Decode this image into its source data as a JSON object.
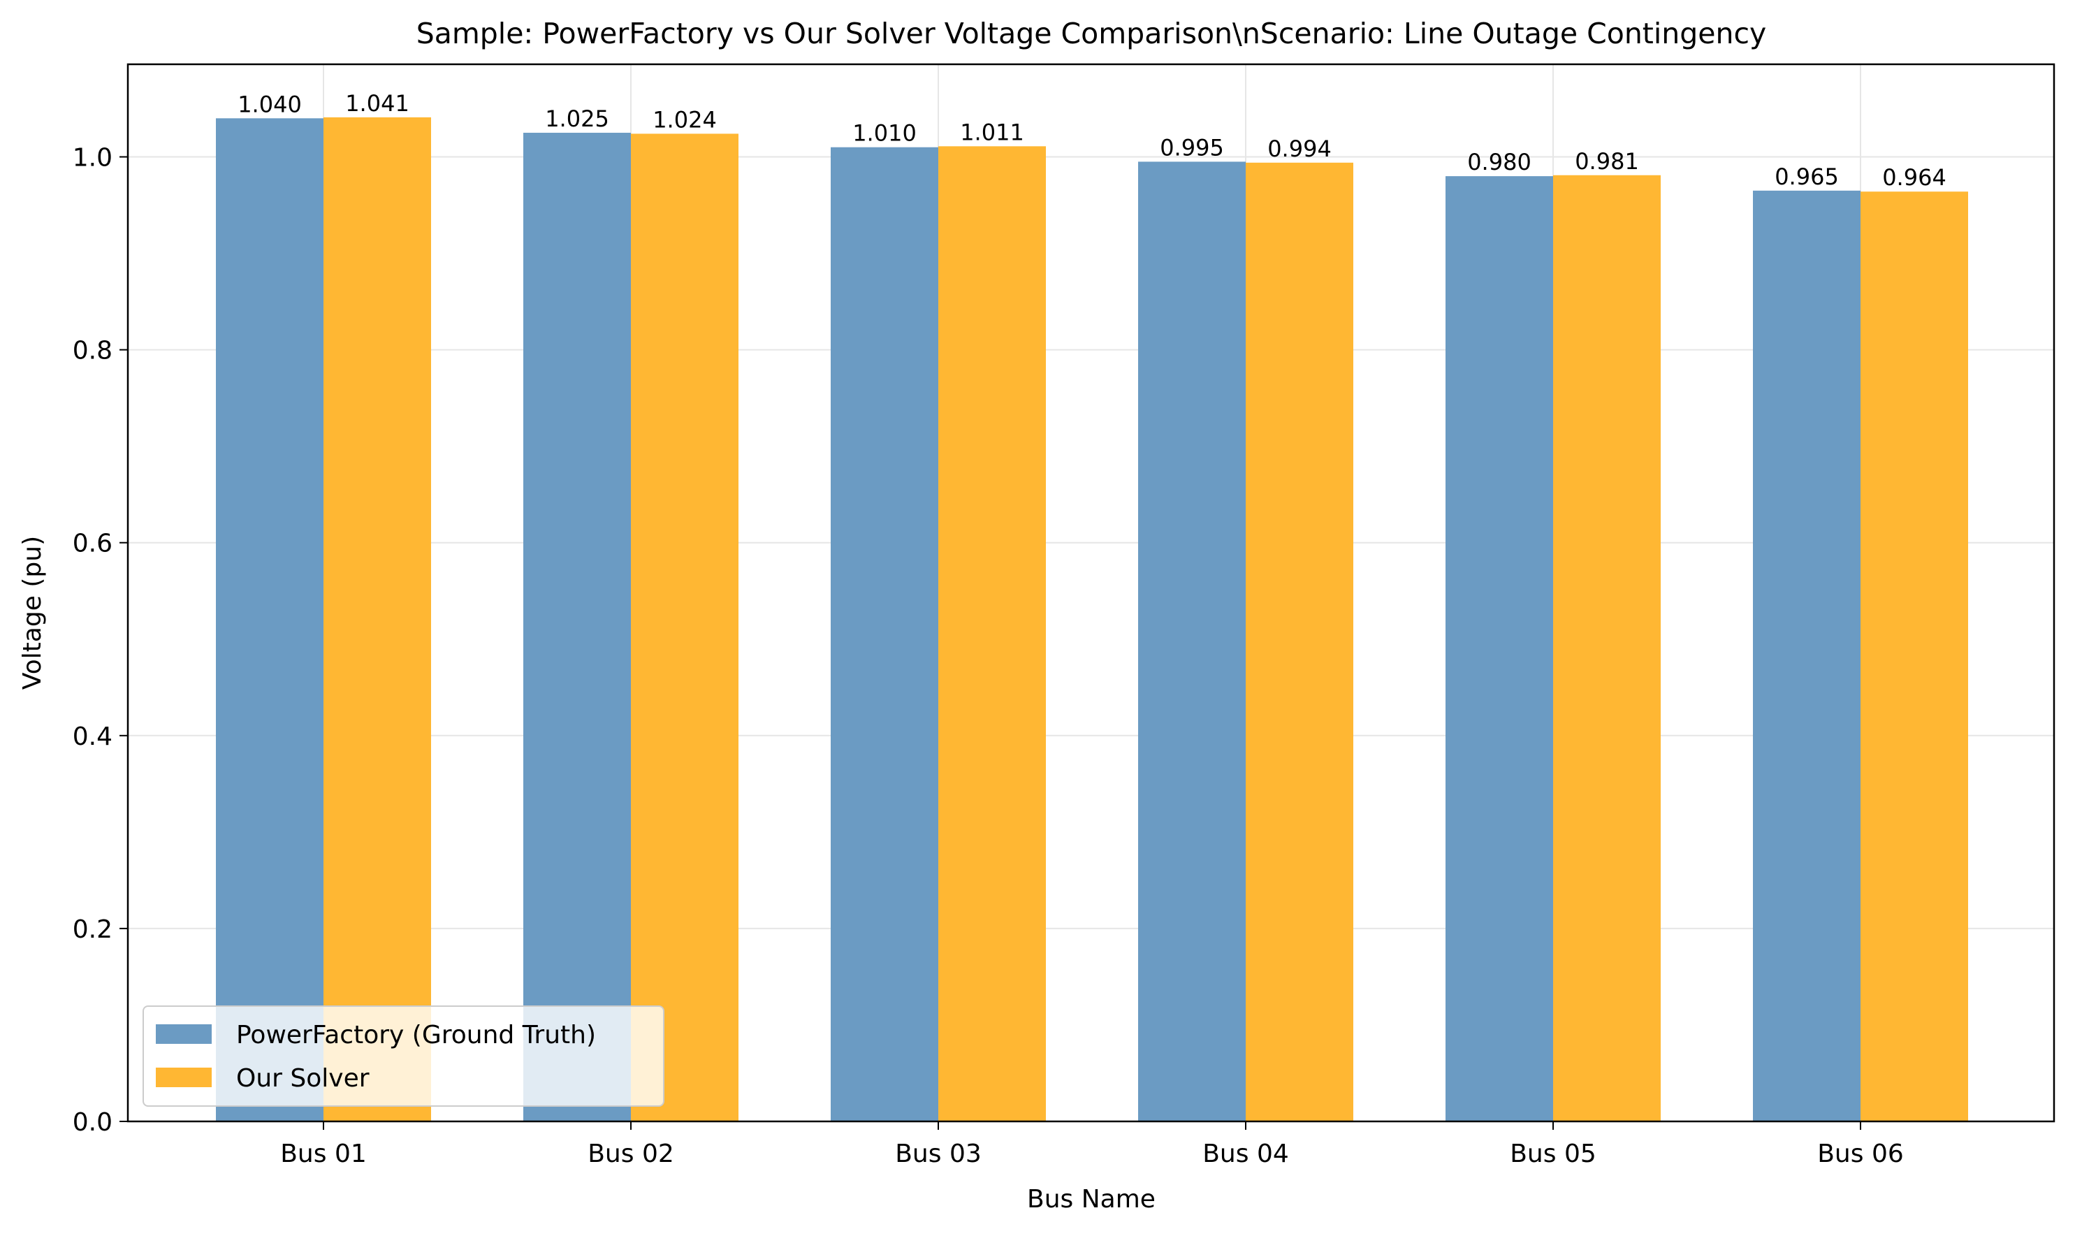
{
  "chart_data": {
    "type": "bar",
    "title": "Sample: PowerFactory vs Our Solver Voltage Comparison\\nScenario: Line Outage Contingency",
    "xlabel": "Bus Name",
    "ylabel": "Voltage (pu)",
    "categories": [
      "Bus 01",
      "Bus 02",
      "Bus 03",
      "Bus 04",
      "Bus 05",
      "Bus 06"
    ],
    "series": [
      {
        "name": "PowerFactory (Ground Truth)",
        "color": "#6b9bc3",
        "values": [
          1.04,
          1.025,
          1.01,
          0.995,
          0.98,
          0.965
        ],
        "labels": [
          "1.040",
          "1.025",
          "1.010",
          "0.995",
          "0.980",
          "0.965"
        ]
      },
      {
        "name": "Our Solver",
        "color": "#ffb733",
        "values": [
          1.041,
          1.024,
          1.011,
          0.994,
          0.981,
          0.964
        ],
        "labels": [
          "1.041",
          "1.024",
          "1.011",
          "0.994",
          "0.981",
          "0.964"
        ]
      }
    ],
    "ylim": [
      0,
      1.096
    ],
    "yticks": [
      "0.0",
      "0.2",
      "0.4",
      "0.6",
      "0.8",
      "1.0"
    ],
    "grid": true,
    "legend": "lower-left"
  }
}
